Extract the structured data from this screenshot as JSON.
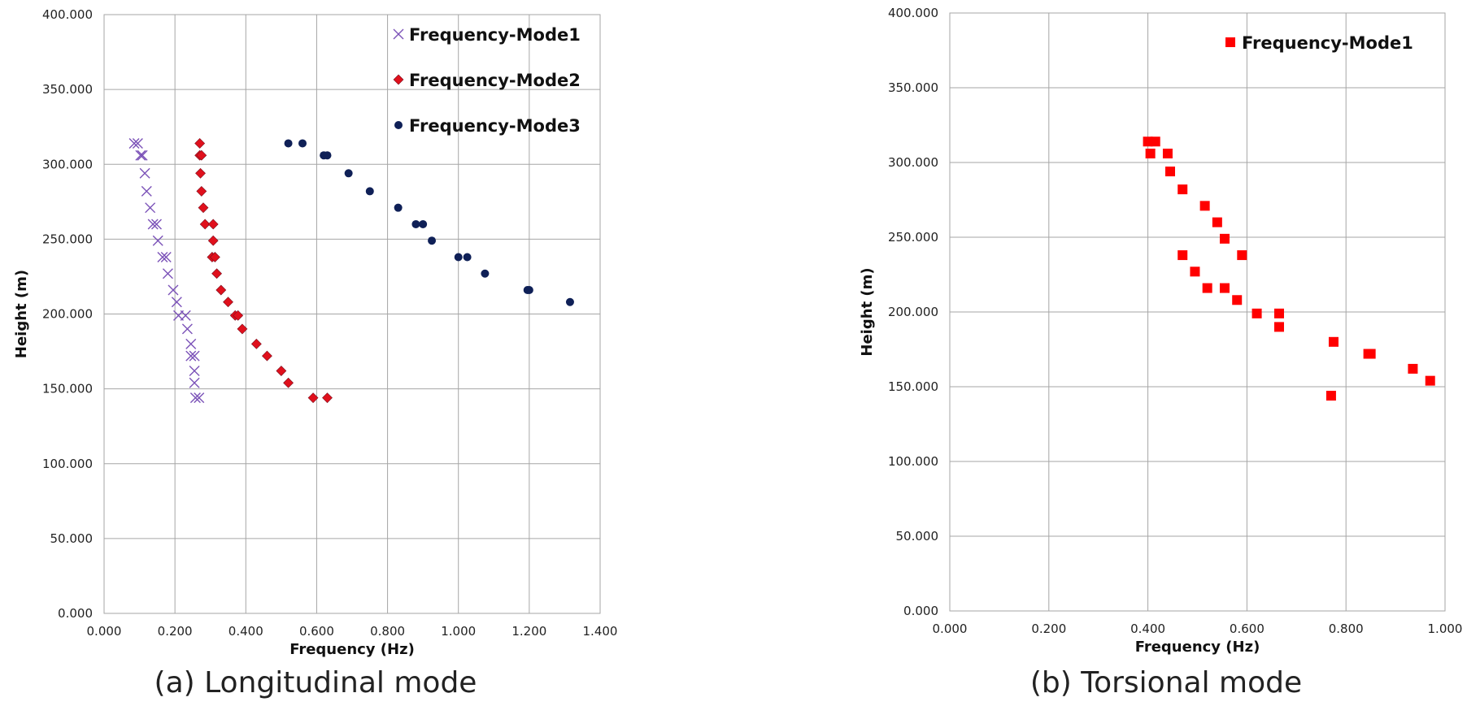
{
  "chart_data": [
    {
      "type": "scatter",
      "caption": "(a) Longitudinal mode",
      "xlabel": "Frequency (Hz)",
      "ylabel": "Height (m)",
      "xlim": [
        0,
        1.4
      ],
      "ylim": [
        0,
        400
      ],
      "xticks": [
        0,
        0.2,
        0.4,
        0.6,
        0.8,
        1.0,
        1.2,
        1.4
      ],
      "yticks": [
        0,
        50,
        100,
        150,
        200,
        250,
        300,
        350,
        400
      ],
      "xtick_labels": [
        "0.000",
        "0.200",
        "0.400",
        "0.600",
        "0.800",
        "1.000",
        "1.200",
        "1.400"
      ],
      "ytick_labels": [
        "0.000",
        "50.000",
        "100.000",
        "150.000",
        "200.000",
        "250.000",
        "300.000",
        "350.000",
        "400.000"
      ],
      "grid": true,
      "legend_position": "top-right",
      "series": [
        {
          "name": "Frequency-Mode1",
          "marker": "x",
          "color": "#7B52B8",
          "points": [
            [
              0.085,
              314
            ],
            [
              0.095,
              314
            ],
            [
              0.103,
              306
            ],
            [
              0.108,
              306
            ],
            [
              0.115,
              294
            ],
            [
              0.12,
              282
            ],
            [
              0.13,
              271
            ],
            [
              0.138,
              260
            ],
            [
              0.148,
              260
            ],
            [
              0.152,
              249
            ],
            [
              0.165,
              238
            ],
            [
              0.175,
              238
            ],
            [
              0.18,
              227
            ],
            [
              0.195,
              216
            ],
            [
              0.205,
              208
            ],
            [
              0.21,
              199
            ],
            [
              0.23,
              199
            ],
            [
              0.235,
              190
            ],
            [
              0.245,
              180
            ],
            [
              0.245,
              172
            ],
            [
              0.255,
              172
            ],
            [
              0.255,
              162
            ],
            [
              0.255,
              154
            ],
            [
              0.258,
              144
            ],
            [
              0.268,
              144
            ]
          ]
        },
        {
          "name": "Frequency-Mode2",
          "marker": "diamond",
          "color": "#E0101C",
          "points": [
            [
              0.27,
              314
            ],
            [
              0.27,
              306
            ],
            [
              0.275,
              306
            ],
            [
              0.272,
              294
            ],
            [
              0.275,
              282
            ],
            [
              0.28,
              271
            ],
            [
              0.285,
              260
            ],
            [
              0.308,
              260
            ],
            [
              0.308,
              249
            ],
            [
              0.305,
              238
            ],
            [
              0.313,
              238
            ],
            [
              0.318,
              227
            ],
            [
              0.33,
              216
            ],
            [
              0.35,
              208
            ],
            [
              0.37,
              199
            ],
            [
              0.378,
              199
            ],
            [
              0.39,
              190
            ],
            [
              0.43,
              180
            ],
            [
              0.46,
              172
            ],
            [
              0.5,
              162
            ],
            [
              0.52,
              154
            ],
            [
              0.59,
              144
            ],
            [
              0.63,
              144
            ]
          ]
        },
        {
          "name": "Frequency-Mode3",
          "marker": "circle",
          "color": "#0F2057",
          "points": [
            [
              0.52,
              314
            ],
            [
              0.56,
              314
            ],
            [
              0.62,
              306
            ],
            [
              0.63,
              306
            ],
            [
              0.69,
              294
            ],
            [
              0.75,
              282
            ],
            [
              0.83,
              271
            ],
            [
              0.88,
              260
            ],
            [
              0.9,
              260
            ],
            [
              0.925,
              249
            ],
            [
              1.0,
              238
            ],
            [
              1.025,
              238
            ],
            [
              1.075,
              227
            ],
            [
              1.195,
              216
            ],
            [
              1.2,
              216
            ],
            [
              1.315,
              208
            ]
          ]
        }
      ]
    },
    {
      "type": "scatter",
      "caption": "(b) Torsional mode",
      "xlabel": "Frequency (Hz)",
      "ylabel": "Height (m)",
      "xlim": [
        0,
        1.0
      ],
      "ylim": [
        0,
        400
      ],
      "xticks": [
        0,
        0.2,
        0.4,
        0.6,
        0.8,
        1.0
      ],
      "yticks": [
        0,
        50,
        100,
        150,
        200,
        250,
        300,
        350,
        400
      ],
      "xtick_labels": [
        "0.000",
        "0.200",
        "0.400",
        "0.600",
        "0.800",
        "1.000"
      ],
      "ytick_labels": [
        "0.000",
        "50.000",
        "100.000",
        "150.000",
        "200.000",
        "250.000",
        "300.000",
        "350.000",
        "400.000"
      ],
      "grid": true,
      "legend_position": "top-right",
      "series": [
        {
          "name": "Frequency-Mode1",
          "marker": "square",
          "color": "#FF0000",
          "points": [
            [
              0.4,
              314
            ],
            [
              0.415,
              314
            ],
            [
              0.405,
              306
            ],
            [
              0.44,
              306
            ],
            [
              0.445,
              294
            ],
            [
              0.47,
              282
            ],
            [
              0.515,
              271
            ],
            [
              0.54,
              260
            ],
            [
              0.555,
              249
            ],
            [
              0.59,
              238
            ],
            [
              0.47,
              238
            ],
            [
              0.495,
              227
            ],
            [
              0.52,
              216
            ],
            [
              0.555,
              216
            ],
            [
              0.58,
              208
            ],
            [
              0.62,
              199
            ],
            [
              0.665,
              199
            ],
            [
              0.665,
              190
            ],
            [
              0.775,
              180
            ],
            [
              0.85,
              172
            ],
            [
              0.845,
              172
            ],
            [
              0.935,
              162
            ],
            [
              0.97,
              154
            ],
            [
              0.77,
              144
            ]
          ]
        }
      ]
    }
  ]
}
